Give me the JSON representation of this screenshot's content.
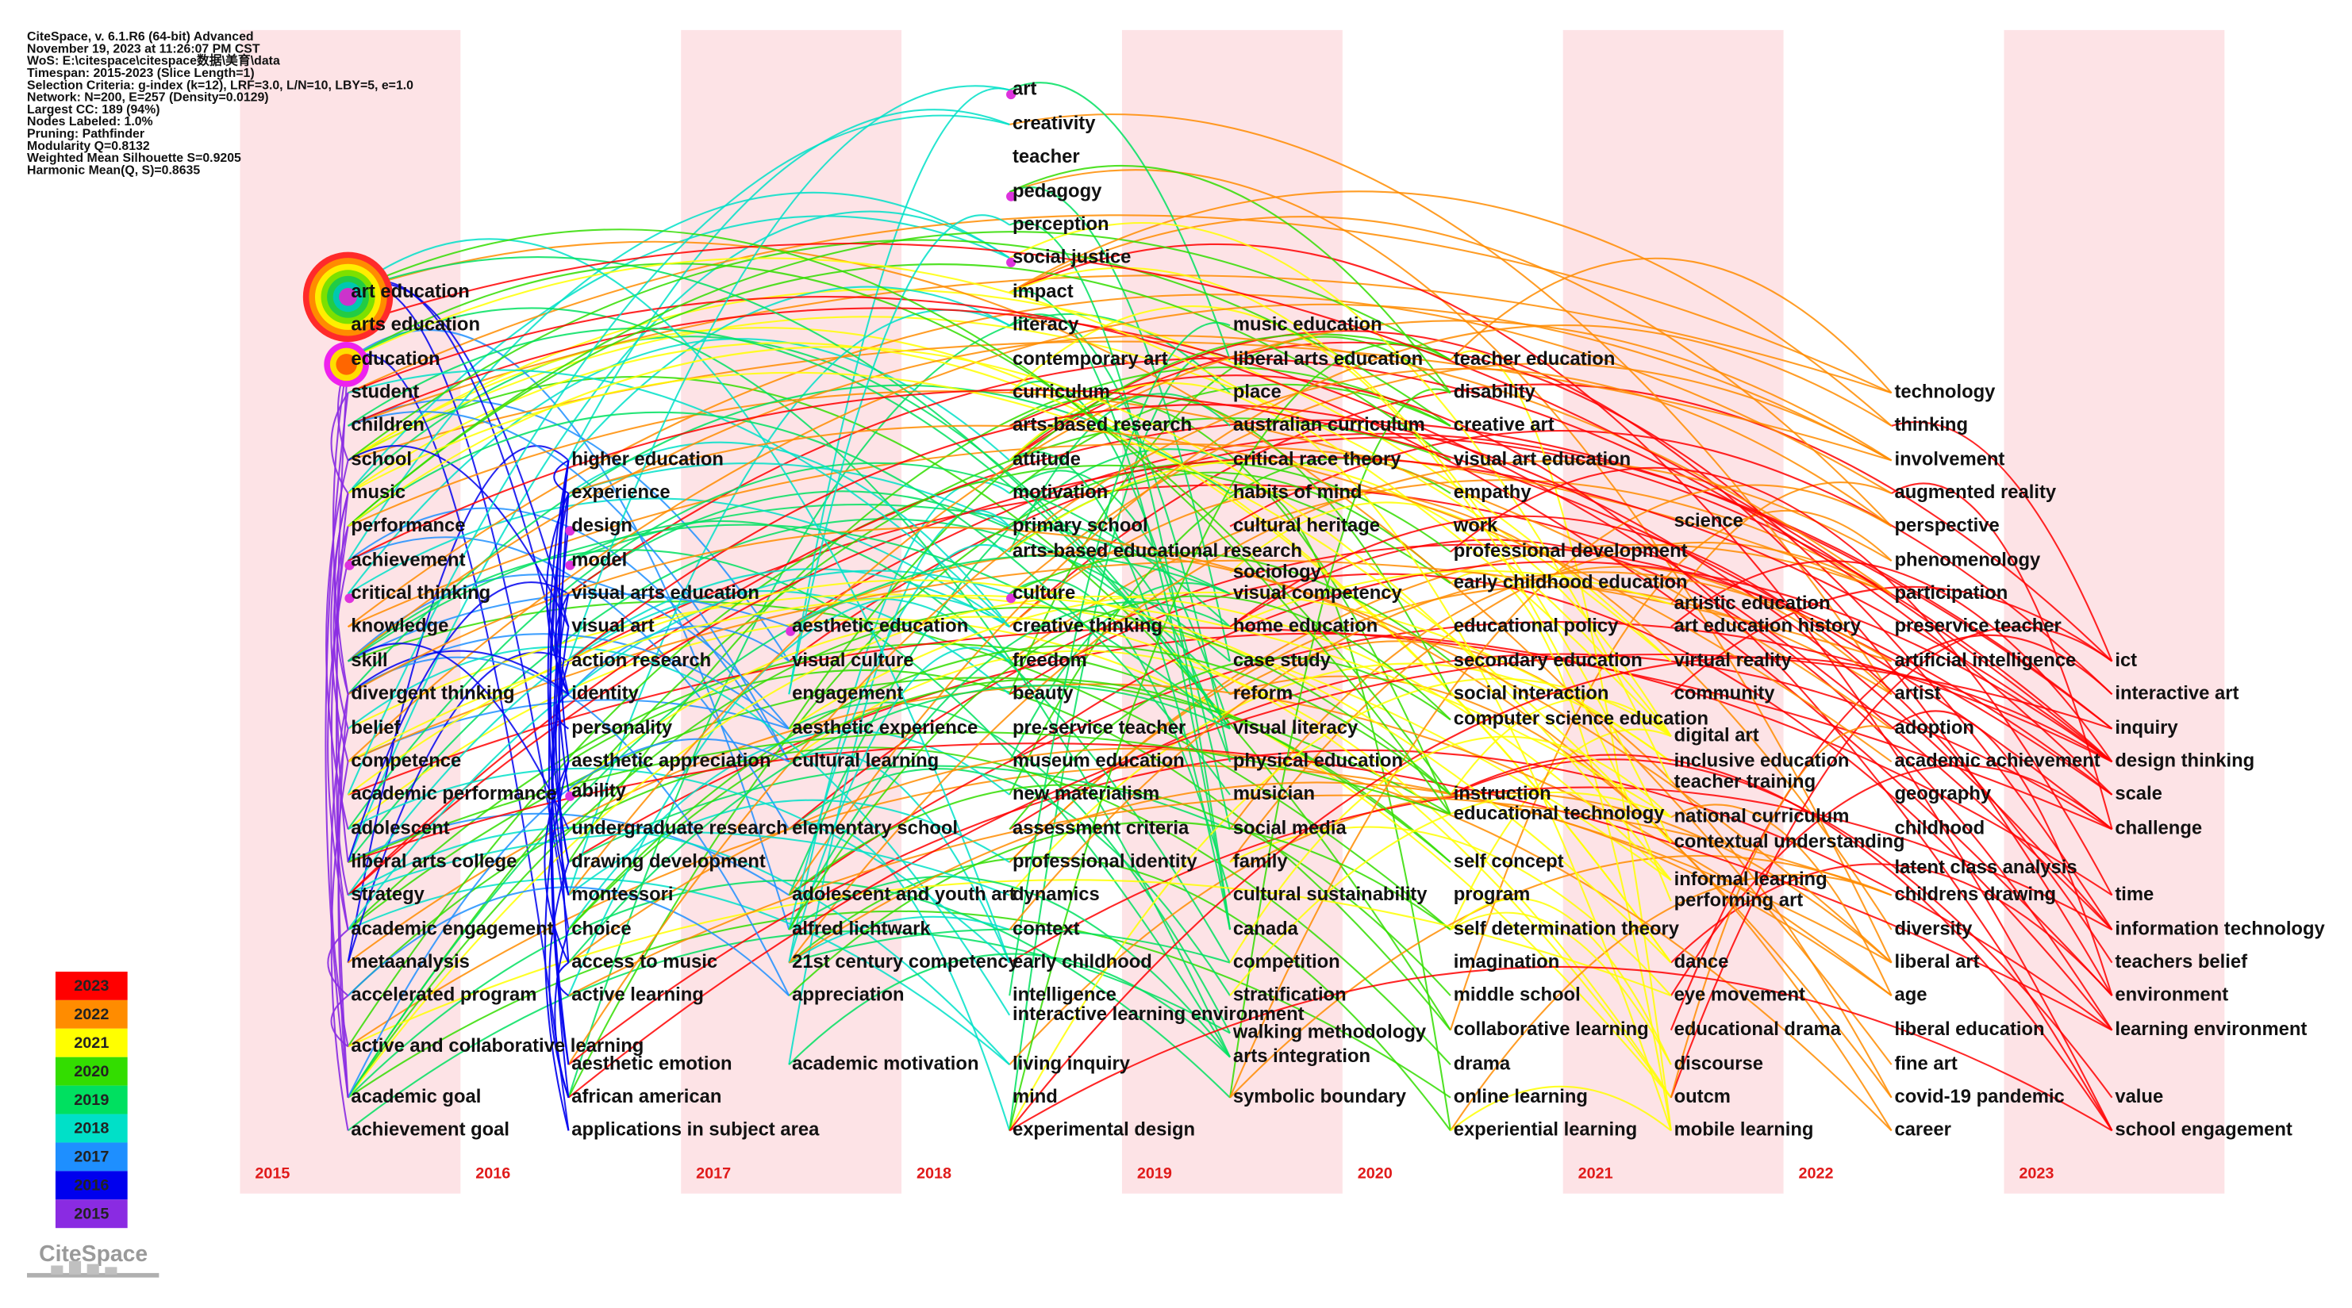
{
  "header": {
    "lines": [
      "CiteSpace, v. 6.1.R6 (64-bit) Advanced",
      "November 19, 2023 at 11:26:07 PM CST",
      "WoS: E:\\citespace\\citespace数据\\美育\\data",
      "Timespan: 2015-2023 (Slice Length=1)",
      "Selection Criteria: g-index (k=12), LRF=3.0, L/N=10, LBY=5, e=1.0",
      "Network: N=200, E=257 (Density=0.0129)",
      "Largest CC: 189 (94%)",
      "Nodes Labeled: 1.0%",
      "Pruning: Pathfinder",
      "Modularity Q=0.8132",
      "Weighted Mean Silhouette S=0.9205",
      "Harmonic Mean(Q, S)=0.8635"
    ]
  },
  "years": [
    "2015",
    "2016",
    "2017",
    "2018",
    "2019",
    "2020",
    "2021",
    "2022",
    "2023"
  ],
  "legend": {
    "years": [
      "2023",
      "2022",
      "2021",
      "2020",
      "2019",
      "2018",
      "2017",
      "2016",
      "2015"
    ],
    "colors": [
      "#ff0000",
      "#ff8c00",
      "#ffff00",
      "#33dd00",
      "#00e060",
      "#00e0c8",
      "#1e8fff",
      "#0000ee",
      "#8a2be2"
    ]
  },
  "columns": [
    {
      "nodes": [
        "art education",
        "arts education",
        "education",
        "student",
        "children",
        "school",
        "music",
        "performance",
        "achievement",
        "critical thinking",
        "knowledge",
        "skill",
        "divergent thinking",
        "belief",
        "competence",
        "academic performance",
        "adolescent",
        "liberal arts college",
        "strategy",
        "academic engagement",
        "metaanalysis",
        "accelerated program",
        "active and collaborative learning",
        "academic goal",
        "achievement goal"
      ]
    },
    {
      "nodes": [
        "higher education",
        "experience",
        "design",
        "model",
        "visual arts education",
        "visual art",
        "action research",
        "identity",
        "personality",
        "aesthetic appreciation",
        "ability",
        "undergraduate research",
        "drawing development",
        "montessori",
        "choice",
        "access to music",
        "active learning",
        "aesthetic emotion",
        "african american",
        "applications in subject area"
      ]
    },
    {
      "nodes": [
        "aesthetic education",
        "visual culture",
        "engagement",
        "aesthetic experience",
        "cultural learning",
        "elementary school",
        "adolescent and youth art",
        "alfred lichtwark",
        "21st century competency",
        "appreciation",
        "academic motivation"
      ]
    },
    {
      "nodes": [
        "art",
        "creativity",
        "teacher",
        "pedagogy",
        "perception",
        "social justice",
        "impact",
        "literacy",
        "contemporary art",
        "curriculum",
        "arts-based research",
        "attitude",
        "motivation",
        "primary school",
        "arts-based educational research",
        "culture",
        "creative thinking",
        "freedom",
        "beauty",
        "pre-service teacher",
        "museum education",
        "new materialism",
        "assessment criteria",
        "professional identity",
        "dynamics",
        "context",
        "early childhood",
        "intelligence",
        "interactive learning environment",
        "living inquiry",
        "mind",
        "experimental design"
      ]
    },
    {
      "nodes": [
        "music education",
        "liberal arts education",
        "place",
        "australian curriculum",
        "critical race theory",
        "habits of mind",
        "cultural heritage",
        "sociology",
        "visual competency",
        "home education",
        "case study",
        "reform",
        "visual literacy",
        "physical education",
        "musician",
        "social media",
        "family",
        "cultural sustainability",
        "canada",
        "competition",
        "stratification",
        "walking methodology",
        "arts integration",
        "symbolic boundary"
      ]
    },
    {
      "nodes": [
        "teacher education",
        "disability",
        "creative art",
        "visual art education",
        "empathy",
        "work",
        "professional development",
        "early childhood education",
        "educational policy",
        "secondary education",
        "social interaction",
        "computer science education",
        "instruction",
        "educational technology",
        "self concept",
        "program",
        "self determination theory",
        "imagination",
        "middle school",
        "collaborative learning",
        "drama",
        "online learning",
        "experiential learning"
      ]
    },
    {
      "nodes": [
        "science",
        "artistic education",
        "art education history",
        "virtual reality",
        "community",
        "digital art",
        "inclusive education",
        "teacher training",
        "national curriculum",
        "contextual understanding",
        "informal learning",
        "performing art",
        "dance",
        "eye movement",
        "educational drama",
        "discourse",
        "outcm",
        "mobile learning"
      ]
    },
    {
      "nodes": [
        "technology",
        "thinking",
        "involvement",
        "augmented reality",
        "perspective",
        "phenomenology",
        "participation",
        "preservice teacher",
        "artificial intelligence",
        "artist",
        "adoption",
        "academic achievement",
        "geography",
        "childhood",
        "latent class analysis",
        "childrens drawing",
        "diversity",
        "liberal art",
        "age",
        "liberal education",
        "fine art",
        "covid-19 pandemic",
        "career"
      ]
    },
    {
      "nodes": [
        "ict",
        "interactive art",
        "inquiry",
        "design thinking",
        "scale",
        "challenge",
        "time",
        "information technology",
        "teachers belief",
        "environment",
        "learning environment",
        "value",
        "school engagement"
      ]
    }
  ],
  "logo": "CiteSpace"
}
